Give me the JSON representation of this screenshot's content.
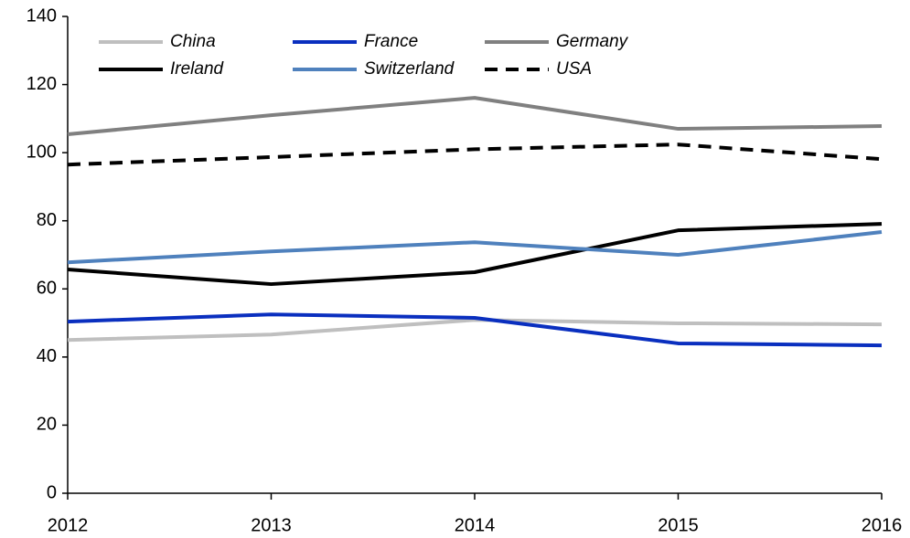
{
  "chart_data": {
    "type": "line",
    "categories": [
      "2012",
      "2013",
      "2014",
      "2015",
      "2016"
    ],
    "series": [
      {
        "name": "China",
        "color": "#bfbfbf",
        "values": [
          45.0,
          46.6,
          50.9,
          49.9,
          49.6
        ]
      },
      {
        "name": "France",
        "color": "#0a2fbf",
        "values": [
          50.4,
          52.5,
          51.5,
          44.0,
          43.4
        ]
      },
      {
        "name": "Germany",
        "color": "#808080",
        "values": [
          105.4,
          111.0,
          116.1,
          107.0,
          107.8
        ]
      },
      {
        "name": "Ireland",
        "color": "#000000",
        "values": [
          65.7,
          61.4,
          64.9,
          77.2,
          79.1
        ]
      },
      {
        "name": "Switzerland",
        "color": "#4f81bd",
        "values": [
          67.8,
          71.0,
          73.7,
          70.0,
          76.7
        ]
      },
      {
        "name": "USA",
        "color": "#000000",
        "line_style": "dashed",
        "values": [
          96.5,
          98.7,
          101.0,
          102.4,
          98.1
        ]
      }
    ],
    "ylim": [
      0,
      140
    ],
    "yticks": [
      0,
      20,
      40,
      60,
      80,
      100,
      120,
      140
    ],
    "grid": false,
    "legend": "top-left"
  }
}
